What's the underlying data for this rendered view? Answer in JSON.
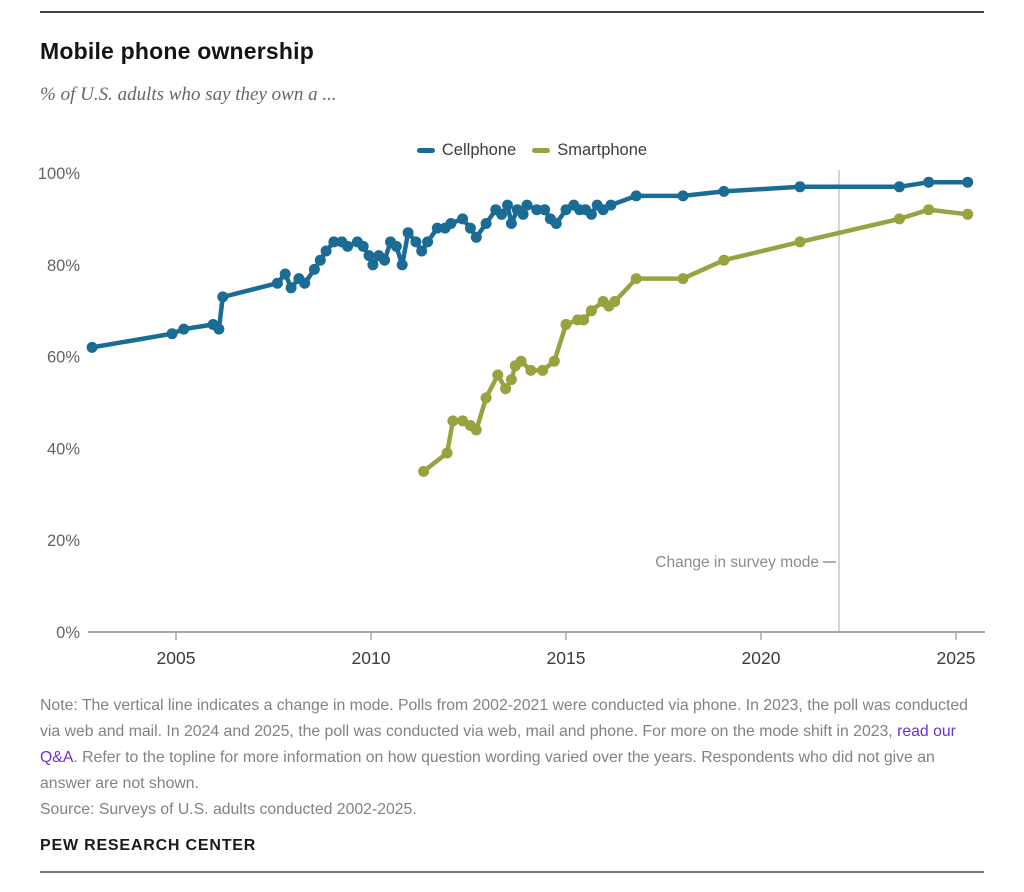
{
  "page": {
    "title": "Mobile phone ownership",
    "subtitle": "% of U.S. adults who say they own a ...",
    "note_prefix": "Note: The vertical line indicates a change in mode. Polls from 2002-2021 were conducted via phone. In 2023, the poll was conducted via web and mail. In 2024 and 2025, the poll was conducted via web, mail and phone. For more on the mode shift in 2023, ",
    "note_link": "read our Q&A",
    "note_suffix": ". Refer to the topline for more information on how question wording varied over the years. Respondents who did not give an answer are not shown.",
    "source": "Source: Surveys of U.S. adults conducted 2002-2025.",
    "footer": "PEW RESEARCH CENTER"
  },
  "colors": {
    "cellphone_blue": "#1b6c95",
    "smartphone_olive": "#98a23f",
    "link_purple": "#6e2fd6",
    "axis_line": "#a8a8a8",
    "x_tick_label": "#3c3c3c",
    "y_tick_label": "#646464",
    "annotation_line": "#c9c9c9",
    "annotation_text": "#8c8c8c"
  },
  "chart_data": {
    "type": "line",
    "title": "Mobile phone ownership",
    "xlabel": "",
    "ylabel": "% of U.S. adults",
    "xlim": [
      2002.3,
      2025.8
    ],
    "ylim": [
      0,
      100
    ],
    "x_ticks": [
      2005,
      2010,
      2015,
      2020,
      2025
    ],
    "y_ticks": [
      0,
      20,
      40,
      60,
      80,
      100
    ],
    "y_tick_suffix": "%",
    "grid": false,
    "legend_position": "top-center",
    "annotation": {
      "label": "Change in survey mode",
      "x": 2022.0
    },
    "series": [
      {
        "name": "Cellphone",
        "color": "#1b6c95",
        "points": [
          [
            2002.85,
            62
          ],
          [
            2004.9,
            65
          ],
          [
            2005.2,
            66
          ],
          [
            2005.95,
            67
          ],
          [
            2006.1,
            66
          ],
          [
            2006.2,
            73
          ],
          [
            2007.6,
            76
          ],
          [
            2007.8,
            78
          ],
          [
            2007.95,
            75
          ],
          [
            2008.15,
            77
          ],
          [
            2008.3,
            76
          ],
          [
            2008.55,
            79
          ],
          [
            2008.7,
            81
          ],
          [
            2008.85,
            83
          ],
          [
            2009.05,
            85
          ],
          [
            2009.25,
            85
          ],
          [
            2009.4,
            84
          ],
          [
            2009.65,
            85
          ],
          [
            2009.8,
            84
          ],
          [
            2009.95,
            82
          ],
          [
            2010.05,
            80
          ],
          [
            2010.2,
            82
          ],
          [
            2010.35,
            81
          ],
          [
            2010.5,
            85
          ],
          [
            2010.65,
            84
          ],
          [
            2010.8,
            80
          ],
          [
            2010.95,
            87
          ],
          [
            2011.15,
            85
          ],
          [
            2011.3,
            83
          ],
          [
            2011.45,
            85
          ],
          [
            2011.7,
            88
          ],
          [
            2011.9,
            88
          ],
          [
            2012.05,
            89
          ],
          [
            2012.35,
            90
          ],
          [
            2012.55,
            88
          ],
          [
            2012.7,
            86
          ],
          [
            2012.95,
            89
          ],
          [
            2013.2,
            92
          ],
          [
            2013.35,
            91
          ],
          [
            2013.5,
            93
          ],
          [
            2013.6,
            89
          ],
          [
            2013.75,
            92
          ],
          [
            2013.9,
            91
          ],
          [
            2014.0,
            93
          ],
          [
            2014.25,
            92
          ],
          [
            2014.45,
            92
          ],
          [
            2014.6,
            90
          ],
          [
            2014.75,
            89
          ],
          [
            2015.0,
            92
          ],
          [
            2015.2,
            93
          ],
          [
            2015.35,
            92
          ],
          [
            2015.5,
            92
          ],
          [
            2015.65,
            91
          ],
          [
            2015.8,
            93
          ],
          [
            2015.95,
            92
          ],
          [
            2016.15,
            93
          ],
          [
            2016.8,
            95
          ],
          [
            2018.0,
            95
          ],
          [
            2019.05,
            96
          ],
          [
            2021.0,
            97
          ],
          [
            2023.55,
            97
          ],
          [
            2024.3,
            98
          ],
          [
            2025.3,
            98
          ]
        ]
      },
      {
        "name": "Smartphone",
        "color": "#98a23f",
        "points": [
          [
            2011.35,
            35
          ],
          [
            2011.95,
            39
          ],
          [
            2012.1,
            46
          ],
          [
            2012.35,
            46
          ],
          [
            2012.55,
            45
          ],
          [
            2012.7,
            44
          ],
          [
            2012.95,
            51
          ],
          [
            2013.25,
            56
          ],
          [
            2013.45,
            53
          ],
          [
            2013.6,
            55
          ],
          [
            2013.7,
            58
          ],
          [
            2013.85,
            59
          ],
          [
            2014.1,
            57
          ],
          [
            2014.4,
            57
          ],
          [
            2014.7,
            59
          ],
          [
            2015.0,
            67
          ],
          [
            2015.3,
            68
          ],
          [
            2015.45,
            68
          ],
          [
            2015.65,
            70
          ],
          [
            2015.95,
            72
          ],
          [
            2016.1,
            71
          ],
          [
            2016.25,
            72
          ],
          [
            2016.8,
            77
          ],
          [
            2018.0,
            77
          ],
          [
            2019.05,
            81
          ],
          [
            2021.0,
            85
          ],
          [
            2023.55,
            90
          ],
          [
            2024.3,
            92
          ],
          [
            2025.3,
            91
          ]
        ]
      }
    ]
  }
}
